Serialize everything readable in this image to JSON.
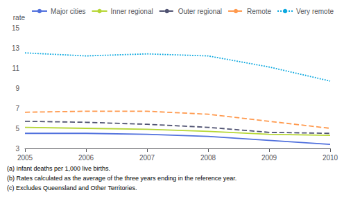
{
  "chart_data": {
    "type": "line",
    "y_label": "rate",
    "x": [
      2005,
      2006,
      2007,
      2008,
      2009,
      2010
    ],
    "series": [
      {
        "name": "Major cities",
        "values": [
          4.5,
          4.5,
          4.4,
          4.2,
          3.8,
          3.4
        ],
        "line_style": "solid"
      },
      {
        "name": "Inner regional",
        "values": [
          5.1,
          5.0,
          4.9,
          4.7,
          4.4,
          4.3
        ],
        "line_style": "solid"
      },
      {
        "name": "Outer regional",
        "values": [
          5.7,
          5.6,
          5.4,
          5.1,
          4.6,
          4.5
        ],
        "line_style": "dashed"
      },
      {
        "name": "Remote",
        "values": [
          6.6,
          6.7,
          6.7,
          6.4,
          5.7,
          5.0
        ],
        "line_style": "dashed"
      },
      {
        "name": "Very remote",
        "values": [
          12.5,
          12.2,
          12.4,
          12.2,
          11.1,
          9.7
        ],
        "line_style": "dotted"
      }
    ],
    "xlim": [
      2005,
      2010
    ],
    "xticks": [
      2005,
      2006,
      2007,
      2008,
      2009,
      2010
    ],
    "ylim": [
      3,
      15
    ],
    "yticks": [
      3,
      5,
      7,
      9,
      11,
      13,
      15
    ],
    "grid": false,
    "legend": "upper right",
    "annotations": [
      "(a) Infant deaths per 1,000 live births.",
      "(b) Rates calculated as the average of the three years ending in the reference year.",
      "(c) Excludes Queensland and Other Territories."
    ]
  }
}
